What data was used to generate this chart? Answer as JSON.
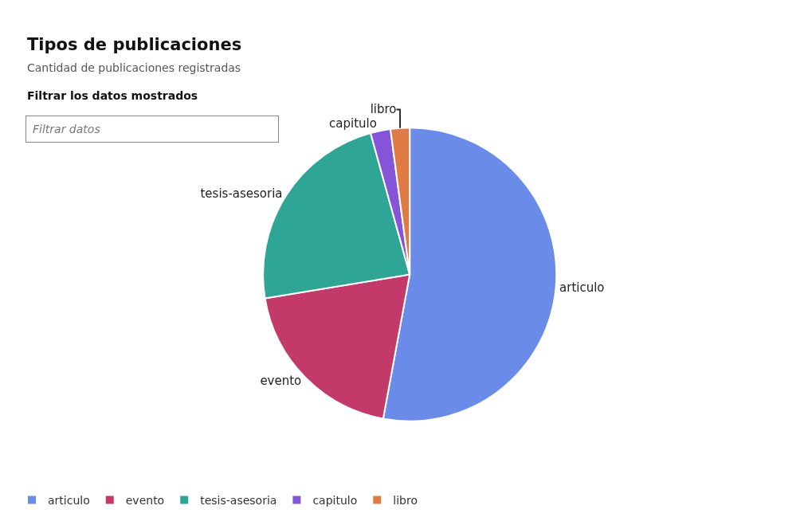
{
  "chart_data": {
    "type": "pie",
    "title": "Tipos de publicaciones",
    "subtitle": "Cantidad de publicaciones registradas",
    "categories": [
      "articulo",
      "evento",
      "tesis-asesoria",
      "capitulo",
      "libro"
    ],
    "values": [
      52.9,
      19.5,
      23.3,
      2.2,
      2.1
    ],
    "colors": [
      "#6a8be8",
      "#c2396a",
      "#2fa596",
      "#8654d8",
      "#e07b45"
    ],
    "legend": "bottom left",
    "annotations": [
      "Filtrar los datos mostrados",
      "Filtrar datos"
    ]
  }
}
